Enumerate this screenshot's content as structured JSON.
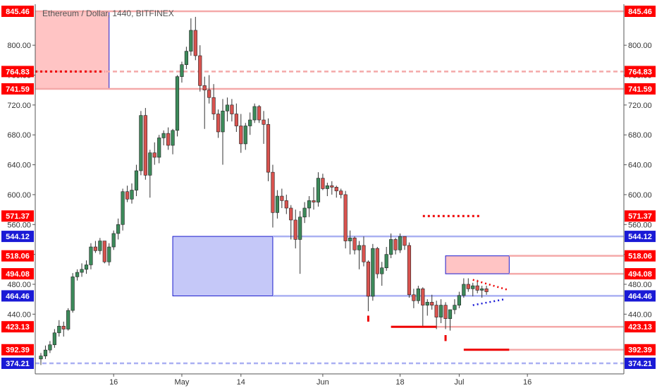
{
  "header": {
    "title": "Ethereum / Dollar, 1440, BITFINEX"
  },
  "colors": {
    "bull": "#3c8a5a",
    "bear": "#d9534f",
    "resistance_line": "#f4a9a9",
    "support_line": "#aab0f2",
    "tag_red": "#ff0000",
    "tag_blue": "#1a1ad6",
    "zone_red_fill": "#ffc4c4",
    "zone_blue_fill": "#c5c8f8",
    "zone_border": "#1a1acc",
    "marker_red": "#ee0000",
    "marker_blue": "#1a1ad6"
  },
  "chart_data": {
    "type": "candlestick",
    "title": "Ethereum / Dollar, 1440, BITFINEX",
    "xlabel": "",
    "ylabel": "",
    "ylim": [
      360,
      850
    ],
    "x_ticks": [
      {
        "label": "16",
        "x": 16
      },
      {
        "label": "May",
        "x": 31
      },
      {
        "label": "14",
        "x": 44
      },
      {
        "label": "Jun",
        "x": 62
      },
      {
        "label": "18",
        "x": 79
      },
      {
        "label": "Jul",
        "x": 92
      },
      {
        "label": "16",
        "x": 107
      }
    ],
    "y_ticks": [
      440,
      480,
      520,
      560,
      600,
      640,
      680,
      720,
      760,
      800
    ],
    "y_tick_labels": [
      "440.00",
      "480.00",
      "520.00",
      "560.00",
      "600.00",
      "640.00",
      "680.00",
      "720.00",
      "760.00",
      "800.00"
    ],
    "candles": [
      [
        0,
        380,
        388,
        372,
        384
      ],
      [
        1,
        384,
        398,
        380,
        392
      ],
      [
        2,
        392,
        404,
        388,
        399
      ],
      [
        3,
        399,
        420,
        395,
        415
      ],
      [
        4,
        415,
        432,
        410,
        424
      ],
      [
        5,
        424,
        430,
        410,
        420
      ],
      [
        6,
        420,
        448,
        418,
        445
      ],
      [
        7,
        445,
        495,
        442,
        490
      ],
      [
        8,
        490,
        500,
        485,
        496
      ],
      [
        9,
        496,
        508,
        490,
        500
      ],
      [
        10,
        500,
        512,
        494,
        506
      ],
      [
        11,
        506,
        535,
        500,
        530
      ],
      [
        12,
        530,
        538,
        522,
        525
      ],
      [
        13,
        525,
        542,
        520,
        538
      ],
      [
        14,
        538,
        535,
        508,
        510
      ],
      [
        15,
        510,
        535,
        505,
        530
      ],
      [
        16,
        530,
        552,
        526,
        548
      ],
      [
        17,
        548,
        568,
        540,
        560
      ],
      [
        18,
        560,
        608,
        552,
        604
      ],
      [
        19,
        604,
        612,
        590,
        594
      ],
      [
        20,
        594,
        615,
        588,
        606
      ],
      [
        21,
        606,
        640,
        598,
        632
      ],
      [
        22,
        632,
        712,
        626,
        706
      ],
      [
        23,
        706,
        716,
        620,
        626
      ],
      [
        24,
        626,
        660,
        596,
        656
      ],
      [
        25,
        656,
        670,
        640,
        650
      ],
      [
        26,
        650,
        680,
        642,
        676
      ],
      [
        27,
        676,
        686,
        666,
        682
      ],
      [
        28,
        682,
        690,
        660,
        666
      ],
      [
        29,
        666,
        688,
        654,
        686
      ],
      [
        30,
        686,
        760,
        678,
        758
      ],
      [
        31,
        758,
        778,
        750,
        774
      ],
      [
        32,
        774,
        798,
        768,
        792
      ],
      [
        33,
        792,
        836,
        786,
        820
      ],
      [
        34,
        820,
        838,
        780,
        786
      ],
      [
        35,
        786,
        800,
        738,
        746
      ],
      [
        36,
        746,
        758,
        688,
        740
      ],
      [
        37,
        740,
        760,
        722,
        730
      ],
      [
        38,
        730,
        748,
        700,
        708
      ],
      [
        39,
        708,
        714,
        676,
        684
      ],
      [
        40,
        684,
        728,
        640,
        712
      ],
      [
        41,
        712,
        730,
        698,
        720
      ],
      [
        42,
        720,
        728,
        698,
        708
      ],
      [
        43,
        708,
        722,
        684,
        692
      ],
      [
        44,
        692,
        708,
        656,
        668
      ],
      [
        45,
        668,
        696,
        660,
        692
      ],
      [
        46,
        692,
        710,
        680,
        700
      ],
      [
        47,
        700,
        722,
        696,
        718
      ],
      [
        48,
        718,
        720,
        696,
        700
      ],
      [
        49,
        700,
        712,
        668,
        694
      ],
      [
        50,
        694,
        702,
        618,
        630
      ],
      [
        51,
        630,
        640,
        556,
        576
      ],
      [
        52,
        576,
        606,
        568,
        598
      ],
      [
        53,
        598,
        608,
        582,
        592
      ],
      [
        54,
        592,
        600,
        574,
        582
      ],
      [
        55,
        582,
        586,
        540,
        566
      ],
      [
        56,
        566,
        580,
        528,
        540
      ],
      [
        57,
        540,
        578,
        494,
        570
      ],
      [
        58,
        570,
        590,
        562,
        582
      ],
      [
        59,
        582,
        598,
        570,
        592
      ],
      [
        60,
        592,
        610,
        580,
        590
      ],
      [
        61,
        590,
        630,
        584,
        622
      ],
      [
        62,
        622,
        628,
        606,
        608
      ],
      [
        63,
        608,
        616,
        598,
        612
      ],
      [
        64,
        612,
        618,
        600,
        610
      ],
      [
        65,
        610,
        612,
        596,
        605
      ],
      [
        66,
        605,
        608,
        595,
        600
      ],
      [
        67,
        600,
        605,
        528,
        538
      ],
      [
        68,
        538,
        552,
        520,
        542
      ],
      [
        69,
        542,
        544,
        520,
        526
      ],
      [
        70,
        526,
        538,
        500,
        532
      ],
      [
        71,
        532,
        544,
        504,
        510
      ],
      [
        72,
        510,
        512,
        444,
        464
      ],
      [
        73,
        464,
        534,
        458,
        528
      ],
      [
        74,
        528,
        530,
        488,
        494
      ],
      [
        75,
        494,
        510,
        478,
        502
      ],
      [
        76,
        502,
        530,
        498,
        520
      ],
      [
        77,
        520,
        548,
        515,
        540
      ],
      [
        78,
        540,
        542,
        520,
        526
      ],
      [
        79,
        526,
        548,
        522,
        544
      ],
      [
        80,
        544,
        540,
        526,
        532
      ],
      [
        81,
        532,
        536,
        462,
        466
      ],
      [
        82,
        466,
        474,
        448,
        458
      ],
      [
        83,
        458,
        478,
        454,
        474
      ],
      [
        84,
        474,
        476,
        422,
        452
      ],
      [
        85,
        452,
        460,
        438,
        456
      ],
      [
        86,
        456,
        466,
        446,
        452
      ],
      [
        87,
        452,
        458,
        420,
        436
      ],
      [
        88,
        436,
        460,
        428,
        452
      ],
      [
        89,
        452,
        456,
        420,
        434
      ],
      [
        90,
        434,
        445,
        418,
        446
      ],
      [
        91,
        446,
        460,
        440,
        452
      ],
      [
        92,
        452,
        470,
        448,
        465
      ],
      [
        93,
        465,
        488,
        462,
        480
      ],
      [
        94,
        480,
        488,
        470,
        474
      ],
      [
        95,
        474,
        482,
        464,
        478
      ],
      [
        96,
        478,
        486,
        468,
        472
      ],
      [
        97,
        472,
        478,
        462,
        474
      ],
      [
        98,
        474,
        478,
        466,
        470
      ]
    ],
    "levels": [
      {
        "value": 845.46,
        "label": "845.46",
        "kind": "resistance",
        "tag": "red"
      },
      {
        "value": 764.83,
        "label": "764.83",
        "kind": "resistance-dashed",
        "tag": "red"
      },
      {
        "value": 741.59,
        "label": "741.59",
        "kind": "resistance",
        "tag": "red"
      },
      {
        "value": 571.37,
        "label": "571.37",
        "kind": "none",
        "tag": "red"
      },
      {
        "value": 544.12,
        "label": "544.12",
        "kind": "support",
        "tag": "blue"
      },
      {
        "value": 518.06,
        "label": "518.06",
        "kind": "resistance",
        "tag": "red"
      },
      {
        "value": 494.08,
        "label": "494.08",
        "kind": "resistance",
        "tag": "red"
      },
      {
        "value": 464.46,
        "label": "464.46",
        "kind": "support",
        "tag": "blue"
      },
      {
        "value": 423.13,
        "label": "423.13",
        "kind": "resistance",
        "tag": "red"
      },
      {
        "value": 392.39,
        "label": "392.39",
        "kind": "resistance",
        "tag": "red"
      },
      {
        "value": 374.21,
        "label": "374.21",
        "kind": "support-dashed",
        "tag": "blue"
      }
    ],
    "zones": [
      {
        "name": "supply-zone-top",
        "x_start": -3,
        "x_end": 15,
        "top": 845.46,
        "bottom": 741.59,
        "fill": "red"
      },
      {
        "name": "demand-zone",
        "x_start": 29,
        "x_end": 51,
        "top": 544.12,
        "bottom": 464.46,
        "fill": "blue"
      },
      {
        "name": "supply-zone-small",
        "x_start": 89,
        "x_end": 103,
        "top": 518.06,
        "bottom": 494.08,
        "fill": "red"
      }
    ],
    "dotted_lines": [
      {
        "name": "dotted-764",
        "x_start": -4,
        "x_end": 14,
        "y": 764.83,
        "color": "red"
      },
      {
        "name": "dotted-571",
        "x_start": 84,
        "x_end": 97,
        "y": 571.37,
        "color": "red"
      }
    ],
    "solid_markers": [
      {
        "name": "marker-423",
        "x_start": 77,
        "x_end": 87,
        "y": 423.13,
        "color": "red"
      },
      {
        "name": "marker-392",
        "x_start": 93,
        "x_end": 103,
        "y": 392.39,
        "color": "red"
      }
    ],
    "triangle": {
      "upper": [
        [
          95,
          486
        ],
        [
          103,
          472
        ]
      ],
      "lower": [
        [
          95,
          452
        ],
        [
          102,
          460
        ]
      ]
    }
  }
}
